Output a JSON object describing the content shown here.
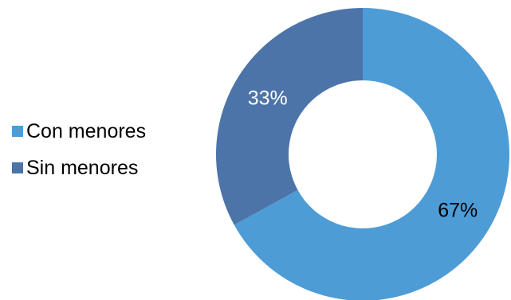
{
  "chart_data": {
    "type": "pie",
    "donut": true,
    "categories": [
      "Con menores",
      "Sin menores"
    ],
    "values": [
      67,
      33
    ],
    "labels": [
      "67%",
      "33%"
    ],
    "colors": [
      "#4e9cd6",
      "#4c74a8"
    ],
    "label_colors": [
      "#000000",
      "#ffffff"
    ],
    "legend": {
      "position": "left",
      "items": [
        {
          "label": "Con menores",
          "color": "#4e9cd6"
        },
        {
          "label": "Sin menores",
          "color": "#4c74a8"
        }
      ]
    },
    "title": ""
  }
}
